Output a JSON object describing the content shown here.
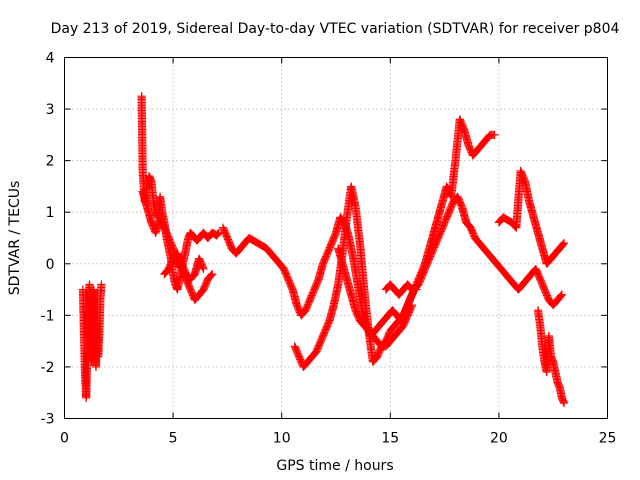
{
  "chart_data": {
    "type": "scatter",
    "title": "Day 213 of 2019, Sidereal Day-to-day VTEC variation (SDTVAR) for receiver p804",
    "xlabel": "GPS time / hours",
    "ylabel": "SDTVAR / TECUs",
    "xlim": [
      0,
      25
    ],
    "ylim": [
      -3,
      4
    ],
    "xticks": [
      0,
      5,
      10,
      15,
      20,
      25
    ],
    "yticks": [
      -3,
      -2,
      -1,
      0,
      1,
      2,
      3,
      4
    ],
    "grid": true,
    "marker": "+",
    "color": "#ff0000",
    "series": [
      {
        "name": "segment-1",
        "x": [
          0.85,
          0.9,
          0.95,
          1.0,
          1.05,
          1.1,
          1.15,
          1.2,
          1.25,
          1.3,
          1.35,
          1.4,
          1.45,
          1.5,
          1.55,
          1.6,
          1.65,
          1.7
        ],
        "y": [
          -0.5,
          -1.4,
          -2.2,
          -2.6,
          -1.7,
          -0.9,
          -0.4,
          -1.2,
          -1.9,
          -0.6,
          -0.5,
          -1.5,
          -2.0,
          -1.1,
          -1.8,
          -1.4,
          -0.7,
          -0.4
        ]
      },
      {
        "name": "segment-2a",
        "x": [
          3.55,
          3.6,
          3.7,
          3.8,
          3.9,
          4.0,
          4.1,
          4.2,
          4.3,
          4.4,
          4.5,
          4.6,
          4.7,
          4.8,
          4.9,
          5.0,
          5.1,
          5.2,
          5.3,
          5.4,
          5.5,
          5.6,
          5.7,
          5.8,
          5.9,
          6.0,
          6.1,
          6.2,
          6.3,
          6.4,
          6.5,
          6.6,
          6.7,
          6.8,
          6.9,
          7.0,
          7.1
        ],
        "y": [
          3.25,
          1.8,
          1.2,
          1.5,
          1.7,
          1.6,
          1.2,
          1.0,
          0.9,
          1.3,
          1.0,
          0.8,
          0.5,
          0.3,
          0.1,
          -0.2,
          -0.4,
          -0.5,
          -0.3,
          -0.1,
          0.1,
          0.3,
          0.5,
          0.6,
          0.55,
          0.5,
          0.45,
          0.5,
          0.55,
          0.6,
          0.55,
          0.5,
          0.55,
          0.6,
          0.58,
          0.55,
          0.6
        ]
      },
      {
        "name": "segment-2b",
        "x": [
          3.6,
          3.8,
          4.0,
          4.2,
          4.4,
          4.6,
          4.8,
          5.0,
          5.2,
          5.4,
          5.6,
          5.8,
          6.0,
          6.2,
          6.4,
          6.6,
          6.8
        ],
        "y": [
          1.4,
          1.1,
          0.8,
          0.6,
          0.9,
          0.7,
          0.5,
          0.3,
          0.0,
          -0.1,
          -0.3,
          -0.5,
          -0.7,
          -0.6,
          -0.5,
          -0.3,
          -0.2
        ]
      },
      {
        "name": "segment-2c",
        "x": [
          4.6,
          4.8,
          5.0,
          5.2,
          5.4,
          5.6,
          5.8,
          6.0,
          6.2,
          6.4
        ],
        "y": [
          -0.2,
          -0.1,
          0.1,
          0.2,
          0.0,
          -0.2,
          -0.3,
          -0.2,
          0.1,
          -0.1
        ]
      },
      {
        "name": "segment-3",
        "x": [
          7.3,
          7.5,
          7.7,
          7.9,
          8.1,
          8.3,
          8.5,
          8.7,
          8.9,
          9.1,
          9.3,
          9.5,
          9.7,
          9.9,
          10.1,
          10.3,
          10.5,
          10.7,
          10.9,
          11.1,
          11.3,
          11.5,
          11.7,
          11.9,
          12.1,
          12.3,
          12.5,
          12.7,
          12.9,
          13.1,
          13.3,
          13.5,
          13.7,
          13.9,
          14.1,
          14.3,
          14.5,
          14.7,
          14.9,
          15.1,
          15.3,
          15.5,
          15.7,
          15.9,
          16.1,
          16.3,
          16.5,
          16.7,
          16.9,
          17.1,
          17.3,
          17.5,
          17.7,
          17.9,
          18.1,
          18.3,
          18.5,
          18.7,
          18.9,
          19.1,
          19.3,
          19.5,
          19.7,
          19.9,
          20.1,
          20.3,
          20.5,
          20.7,
          20.9,
          21.1,
          21.3,
          21.5,
          21.7,
          21.9,
          22.1,
          22.3,
          22.5,
          22.7,
          22.9
        ],
        "y": [
          0.7,
          0.5,
          0.3,
          0.2,
          0.3,
          0.4,
          0.5,
          0.45,
          0.4,
          0.35,
          0.3,
          0.2,
          0.1,
          0.0,
          -0.1,
          -0.3,
          -0.5,
          -0.8,
          -1.0,
          -0.9,
          -0.7,
          -0.5,
          -0.3,
          0.0,
          0.2,
          0.4,
          0.6,
          0.9,
          0.8,
          0.5,
          0.1,
          -0.4,
          -0.9,
          -1.2,
          -1.4,
          -1.3,
          -1.2,
          -1.1,
          -1.0,
          -0.9,
          -1.0,
          -1.1,
          -0.9,
          -0.7,
          -0.5,
          -0.4,
          -0.2,
          0.0,
          0.2,
          0.4,
          0.6,
          0.8,
          1.0,
          1.2,
          1.3,
          1.1,
          0.8,
          0.7,
          0.5,
          0.4,
          0.3,
          0.2,
          0.1,
          0.0,
          -0.1,
          -0.2,
          -0.3,
          -0.4,
          -0.5,
          -0.4,
          -0.3,
          -0.2,
          -0.1,
          -0.3,
          -0.5,
          -0.7,
          -0.8,
          -0.7,
          -0.6
        ]
      },
      {
        "name": "segment-4",
        "x": [
          10.6,
          10.8,
          11.0,
          11.2,
          11.4,
          11.6,
          11.8,
          12.0,
          12.2,
          12.4,
          12.6,
          12.8,
          13.0,
          13.2,
          13.4,
          13.6,
          13.8,
          14.0,
          14.2,
          14.4,
          14.6,
          14.8,
          15.0,
          15.2,
          15.4,
          15.6,
          15.8,
          16.0,
          16.2,
          16.4,
          16.6,
          16.8,
          17.0,
          17.2,
          17.4,
          17.6,
          17.8,
          18.0,
          18.2,
          18.4,
          18.6,
          18.8,
          19.0,
          19.2,
          19.4,
          19.6,
          19.8
        ],
        "y": [
          -1.6,
          -1.8,
          -2.0,
          -1.9,
          -1.8,
          -1.7,
          -1.5,
          -1.3,
          -1.1,
          -0.8,
          -0.4,
          0.2,
          0.9,
          1.5,
          1.1,
          0.4,
          -0.5,
          -1.3,
          -1.9,
          -1.8,
          -1.6,
          -1.5,
          -1.3,
          -1.2,
          -1.1,
          -1.0,
          -0.8,
          -0.6,
          -0.4,
          -0.2,
          0.0,
          0.3,
          0.6,
          0.9,
          1.2,
          1.5,
          1.3,
          2.0,
          2.8,
          2.6,
          2.3,
          2.1,
          2.2,
          2.3,
          2.4,
          2.5,
          2.5
        ]
      },
      {
        "name": "segment-5",
        "x": [
          12.6,
          12.8,
          13.0,
          13.2,
          13.4,
          13.6,
          13.8,
          14.0,
          14.2,
          14.4,
          14.6,
          14.8,
          15.0,
          15.2,
          15.4,
          15.6,
          15.8,
          16.0
        ],
        "y": [
          0.3,
          0.0,
          -0.3,
          -0.6,
          -0.9,
          -1.1,
          -1.2,
          -1.3,
          -1.4,
          -1.5,
          -1.6,
          -1.6,
          -1.5,
          -1.4,
          -1.3,
          -1.2,
          -1.0,
          -0.8
        ]
      },
      {
        "name": "segment-6",
        "x": [
          14.8,
          15.0,
          15.2,
          15.4,
          15.6,
          15.8,
          16.0,
          16.2
        ],
        "y": [
          -0.5,
          -0.4,
          -0.5,
          -0.6,
          -0.5,
          -0.4,
          -0.5,
          -0.5
        ]
      },
      {
        "name": "segment-7",
        "x": [
          20.0,
          20.2,
          20.4,
          20.6,
          20.8,
          21.0,
          21.2,
          21.4,
          21.6,
          21.8,
          22.0,
          22.2,
          22.4,
          22.6,
          22.8,
          23.0
        ],
        "y": [
          0.8,
          0.9,
          0.85,
          0.8,
          0.7,
          1.8,
          1.6,
          1.2,
          0.9,
          0.6,
          0.3,
          0.0,
          0.1,
          0.2,
          0.3,
          0.4
        ]
      },
      {
        "name": "segment-8",
        "x": [
          21.8,
          21.9,
          22.0,
          22.1,
          22.2,
          22.3,
          22.4,
          22.5,
          22.6,
          22.7,
          22.8,
          22.9,
          23.0
        ],
        "y": [
          -0.9,
          -1.2,
          -1.6,
          -1.9,
          -2.1,
          -1.4,
          -1.8,
          -1.9,
          -2.1,
          -2.3,
          -2.4,
          -2.6,
          -2.7
        ]
      }
    ]
  }
}
